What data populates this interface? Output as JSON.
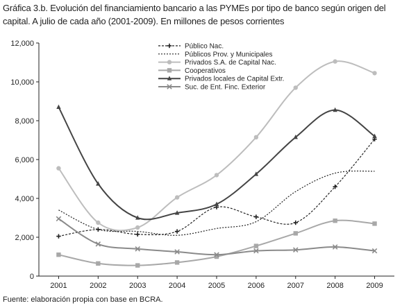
{
  "chart_data": {
    "type": "line",
    "title": "Gráfica 3.b. Evolución del financiamiento bancario a las PYMEs por tipo de banco según origen del capital. A julio de cada año (2001-2009). En millones de pesos corrientes",
    "x": [
      "2001",
      "2002",
      "2003",
      "2004",
      "2005",
      "2006",
      "2007",
      "2008",
      "2009"
    ],
    "ylim": [
      0,
      12000
    ],
    "yticks": [
      0,
      2000,
      4000,
      6000,
      8000,
      10000,
      12000
    ],
    "ytick_labels": [
      "0",
      "2,000",
      "4,000",
      "6,000",
      "8,000",
      "10,000",
      "12,000"
    ],
    "grid": false,
    "legend_position": "top-center",
    "series": [
      {
        "name": "Público Nac.",
        "color": "#222222",
        "dash": "3,2",
        "marker": "plus",
        "values": [
          2050,
          2400,
          2150,
          2300,
          3550,
          3050,
          2750,
          4600,
          7050
        ]
      },
      {
        "name": "Públicos Prov. y Municipales",
        "color": "#222222",
        "dash": "2,2",
        "marker": "none",
        "values": [
          3400,
          2400,
          2300,
          2100,
          2450,
          2800,
          4350,
          5300,
          5400
        ]
      },
      {
        "name": "Privados S.A. de Capital Nac.",
        "color": "#bdbdbd",
        "dash": "",
        "marker": "circle",
        "values": [
          5550,
          2750,
          2500,
          4050,
          5200,
          7150,
          9700,
          11050,
          10450
        ]
      },
      {
        "name": "Cooperativos",
        "color": "#a8a8a8",
        "dash": "",
        "marker": "square",
        "values": [
          1100,
          650,
          550,
          700,
          1000,
          1550,
          2200,
          2850,
          2700
        ]
      },
      {
        "name": "Privados locales de Capital Extr.",
        "color": "#444444",
        "dash": "",
        "marker": "triangle",
        "values": [
          8700,
          4750,
          3000,
          3250,
          3700,
          5250,
          7150,
          8550,
          7200
        ]
      },
      {
        "name": "Suc. de Ent. Finc. Exterior",
        "color": "#8a8a8a",
        "dash": "",
        "marker": "cross",
        "values": [
          2950,
          1650,
          1400,
          1250,
          1100,
          1300,
          1350,
          1500,
          1300
        ]
      }
    ]
  },
  "source": "Fuente: elaboración propia con base en BCRA."
}
